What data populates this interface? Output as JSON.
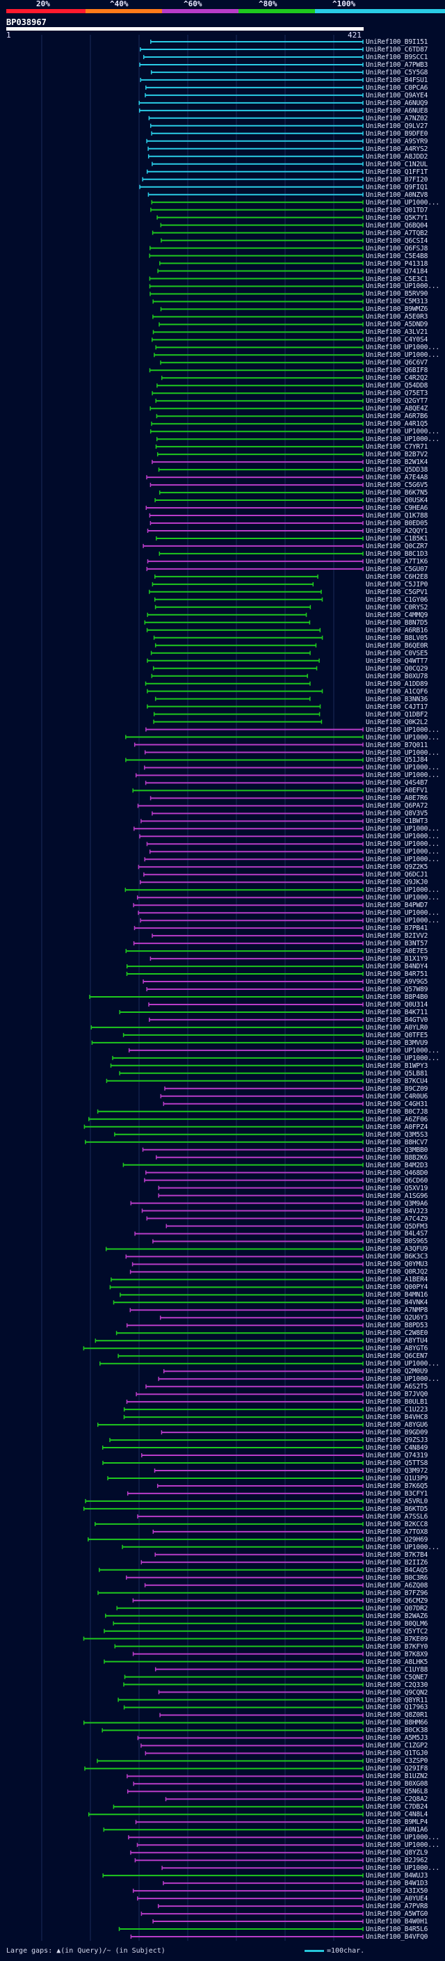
{
  "legend": {
    "labels": [
      "20%",
      "^40%",
      "^60%",
      "^80%",
      "^100%"
    ],
    "colors": [
      "#ff1a2e",
      "#ff7a1a",
      "#b93cc8",
      "#1ec81e",
      "#2acce6"
    ]
  },
  "query": {
    "name": "BP038967",
    "start": "1",
    "end": "421"
  },
  "footer": {
    "left": "Large gaps: ▲(in Query)/~ (in Subject)",
    "right": "=100char."
  },
  "hits": [
    "UniRef100_B9I151",
    "UniRef100_C6TD87",
    "UniRef100_B9SCC1",
    "UniRef100_A7PWB3",
    "UniRef100_C5Y5G8",
    "UniRef100_B4FSU1",
    "UniRef100_C0PCA6",
    "UniRef100_Q9AYE4",
    "UniRef100_A6NUQ9",
    "UniRef100_A6NUE8",
    "UniRef100_A7NZ02",
    "UniRef100_Q9LV27",
    "UniRef100_B9DFE0",
    "UniRef100_A9SYR9",
    "UniRef100_A4RYS2",
    "UniRef100_A8JDD2",
    "UniRef100_C1N2UL",
    "UniRef100_Q1FF1T",
    "UniRef100_B7FI20",
    "UniRef100_Q9FIQ1",
    "UniRef100_A0NZV8",
    "UniRef100_UP1000...",
    "UniRef100_Q01TD7",
    "UniRef100_Q5K7Y1",
    "UniRef100_Q6BQ04",
    "UniRef100_A7TQB2",
    "UniRef100_Q6CSI4",
    "UniRef100_Q6FSJ8",
    "UniRef100_C5E4B8",
    "UniRef100_P41318",
    "UniRef100_Q74184",
    "UniRef100_C5E3C1",
    "UniRef100_UP1000...",
    "UniRef100_B5RV90",
    "UniRef100_C5M313",
    "UniRef100_B9WMZ6",
    "UniRef100_A5E0R3",
    "UniRef100_A5DND9",
    "UniRef100_A3LV21",
    "UniRef100_C4Y0S4",
    "UniRef100_UP1000...",
    "UniRef100_UP1000...",
    "UniRef100_Q6C6V7",
    "UniRef100_Q6BIF8",
    "UniRef100_C4R2Q2",
    "UniRef100_Q54DD8",
    "UniRef100_Q75ET3",
    "UniRef100_Q2GYT7",
    "UniRef100_A8QE4Z",
    "UniRef100_A6R7B6",
    "UniRef100_A4R1Q5",
    "UniRef100_UP1000...",
    "UniRef100_UP1000...",
    "UniRef100_C7YR71",
    "UniRef100_B2B7V2",
    "UniRef100_B2W1K4",
    "UniRef100_Q5DD38",
    "UniRef100_A7E4A8",
    "UniRef100_C5G6V5",
    "UniRef100_B6K7N5",
    "UniRef100_Q0USK4",
    "UniRef100_C9HEA6",
    "UniRef100_Q1K788",
    "UniRef100_B0ED05",
    "UniRef100_A2QQY1",
    "UniRef100_C1B5K1",
    "UniRef100_Q0CZR7",
    "UniRef100_B8C1D3",
    "UniRef100_A7T1K6",
    "UniRef100_C5GU07",
    "UniRef100_C6H2E8",
    "UniRef100_C5JIP0",
    "UniRef100_C5GPV1",
    "UniRef100_C1GY06",
    "UniRef100_C0RYS2",
    "UniRef100_C4MMQ9",
    "UniRef100_B8N7D5",
    "UniRef100_A6RB16",
    "UniRef100_B8LV05",
    "UniRef100_B6QE0R",
    "UniRef100_C0VSE5",
    "UniRef100_Q4WTT7",
    "UniRef100_Q0CQ29",
    "UniRef100_B0XU78",
    "UniRef100_A1DD89",
    "UniRef100_A1CQF6",
    "UniRef100_B3NN36",
    "UniRef100_C4JT17",
    "UniRef100_Q1DBF2",
    "UniRef100_Q0K2L2",
    "UniRef100_UP1000...",
    "UniRef100_UP1000...",
    "UniRef100_B7Q011",
    "UniRef100_UP1000...",
    "UniRef100_Q51J84",
    "UniRef100_UP1000...",
    "UniRef100_UP1000...",
    "UniRef100_Q4S4B7",
    "UniRef100_A0EFV1",
    "UniRef100_A0E7R6",
    "UniRef100_Q6PA72",
    "UniRef100_Q8V3V5",
    "UniRef100_C1BWT3",
    "UniRef100_UP1000...",
    "UniRef100_UP1000...",
    "UniRef100_UP1000...",
    "UniRef100_UP1000...",
    "UniRef100_UP1000...",
    "UniRef100_Q9Z2K5",
    "UniRef100_Q6DCJ1",
    "UniRef100_Q9JKJ0",
    "UniRef100_UP1000...",
    "UniRef100_UP1000...",
    "UniRef100_B4PWD7",
    "UniRef100_UP1000...",
    "UniRef100_UP1000...",
    "UniRef100_B7PB41",
    "UniRef100_B2IVV2",
    "UniRef100_B3NT57",
    "UniRef100_A0E7E5",
    "UniRef100_B1X1Y9",
    "UniRef100_B4NDY4",
    "UniRef100_B4R751",
    "UniRef100_A9V9G5",
    "UniRef100_Q57W89",
    "UniRef100_B8P4B0",
    "UniRef100_Q0U314",
    "UniRef100_B4K711",
    "UniRef100_B4GTV0",
    "UniRef100_A0YLR0",
    "UniRef100_Q0TFE5",
    "UniRef100_B3MVU9",
    "UniRef100_UP1000...",
    "UniRef100_UP1000...",
    "UniRef100_B1WPY3",
    "UniRef100_Q5LB81",
    "UniRef100_B7KCU4",
    "UniRef100_B9CZ09",
    "UniRef100_C4R0U6",
    "UniRef100_C4GH31",
    "UniRef100_B0C7J8",
    "UniRef100_A6ZF06",
    "UniRef100_A0FPZ4",
    "UniRef100_Q3M5S3",
    "UniRef100_B8HCV7",
    "UniRef100_Q3MBB0",
    "UniRef100_B8B2K6",
    "UniRef100_B4M2D3",
    "UniRef100_Q468D0",
    "UniRef100_Q6CD60",
    "UniRef100_Q5XV19",
    "UniRef100_A1SG96",
    "UniRef100_Q3M9A6",
    "UniRef100_B4VJ23",
    "UniRef100_A7C4Z9",
    "UniRef100_Q5DFM3",
    "UniRef100_B4L4S7",
    "UniRef100_B0S965",
    "UniRef100_A3QFU9",
    "UniRef100_B6K3C3",
    "UniRef100_Q0YMU3",
    "UniRef100_Q0RJQ2",
    "UniRef100_A1BER4",
    "UniRef100_Q00PY4",
    "UniRef100_B4MN16",
    "UniRef100_B4VNK4",
    "UniRef100_A7NMP8",
    "UniRef100_Q2U6Y3",
    "UniRef100_B8PD53",
    "UniRef100_C2W8E0",
    "UniRef100_A8YTU4",
    "UniRef100_A8YGT6",
    "UniRef100_Q6CEN7",
    "UniRef100_UP1000...",
    "UniRef100_Q2M0U9",
    "UniRef100_UP1000...",
    "UniRef100_A6S2T5",
    "UniRef100_B7JVQ0",
    "UniRef100_B0ULB1",
    "UniRef100_C1U223",
    "UniRef100_B4VHC8",
    "UniRef100_A8YGU6",
    "UniRef100_B9GD09",
    "UniRef100_Q9ZSJ3",
    "UniRef100_C4N849",
    "UniRef100_Q74319",
    "UniRef100_Q5TTS8",
    "UniRef100_Q3M972",
    "UniRef100_Q1U3P9",
    "UniRef100_B7K6Q5",
    "UniRef100_B3CFY1",
    "UniRef100_A5VRL0",
    "UniRef100_B6KTD5",
    "UniRef100_A7SSL6",
    "UniRef100_B2KCC8",
    "UniRef100_A7TOX8",
    "UniRef100_Q29H69",
    "UniRef100_UP1000...",
    "UniRef100_B7K7B4",
    "UniRef100_B2IIZ6",
    "UniRef100_B4CAQ5",
    "UniRef100_B0C3R6",
    "UniRef100_A6ZQ08",
    "UniRef100_B7FZ96",
    "UniRef100_Q6CMZ9",
    "UniRef100_Q07DR2",
    "UniRef100_B2WAZ6",
    "UniRef100_B0QLM6",
    "UniRef100_Q5YTC2",
    "UniRef100_B7KE09",
    "UniRef100_B7KFY0",
    "UniRef100_B7K8X9",
    "UniRef100_A8LHK5",
    "UniRef100_C1UY88",
    "UniRef100_C5QNE7",
    "UniRef100_C2Q330",
    "UniRef100_Q9CQN2",
    "UniRef100_Q8YR11",
    "UniRef100_Q17963",
    "UniRef100_Q8Z0R1",
    "UniRef100_B8HM66",
    "UniRef100_B0CK38",
    "UniRef100_A5M5J3",
    "UniRef100_C1ZGP2",
    "UniRef100_Q1TGJ0",
    "UniRef100_C3ZSP0",
    "UniRef100_Q29IF8",
    "UniRef100_B1UZN2",
    "UniRef100_B0XG08",
    "UniRef100_Q5N6L8",
    "UniRef100_C2Q8A2",
    "UniRef100_C7DB24",
    "UniRef100_C4N8L4",
    "UniRef100_B9MLP4",
    "UniRef100_A0N1A6",
    "UniRef100_UP1000...",
    "UniRef100_UP1000...",
    "UniRef100_Q8YZL9",
    "UniRef100_B2J962",
    "UniRef100_UP1000...",
    "UniRef100_B4WUJ3",
    "UniRef100_B4W1D3",
    "UniRef100_A3IX50",
    "UniRef100_A0YUE4",
    "UniRef100_A7PVR8",
    "UniRef100_A5WTG0",
    "UniRef100_B4W0H1",
    "UniRef100_B4R5L6",
    "UniRef100_B4VFQ0"
  ]
}
